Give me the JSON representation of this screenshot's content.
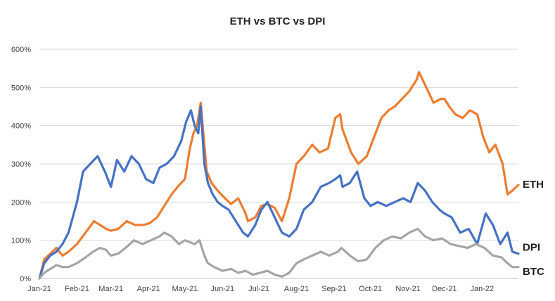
{
  "chart_data": {
    "type": "line",
    "title": "ETH vs BTC vs DPI",
    "xlabel": "",
    "ylabel": "",
    "ylim": [
      0,
      600
    ],
    "y_ticks": [
      "0%",
      "100%",
      "200%",
      "300%",
      "400%",
      "500%",
      "600%"
    ],
    "y_tick_values": [
      0,
      100,
      200,
      300,
      400,
      500,
      600
    ],
    "x_ticks": [
      "Jan-21",
      "Feb-21",
      "Mar-21",
      "Apr-21",
      "May-21",
      "Jun-21",
      "Jul-21",
      "Aug-21",
      "Sep-21",
      "Oct-21",
      "Nov-21",
      "Dec-21",
      "Jan-22"
    ],
    "x_tick_values": [
      "2021-01-01",
      "2021-02-01",
      "2021-03-01",
      "2021-04-01",
      "2021-05-01",
      "2021-06-01",
      "2021-07-01",
      "2021-08-01",
      "2021-09-01",
      "2021-10-01",
      "2021-11-01",
      "2021-12-01",
      "2022-01-01"
    ],
    "x_range": [
      "2021-01-01",
      "2022-01-31"
    ],
    "grid": "horizontal",
    "legend": "labels at line ends (right)",
    "series": [
      {
        "name": "ETH",
        "color": "#ED7D31",
        "x": [
          "2021-01-01",
          "2021-01-05",
          "2021-01-10",
          "2021-01-15",
          "2021-01-20",
          "2021-01-25",
          "2021-02-01",
          "2021-02-08",
          "2021-02-15",
          "2021-02-20",
          "2021-02-25",
          "2021-03-01",
          "2021-03-07",
          "2021-03-14",
          "2021-03-21",
          "2021-03-28",
          "2021-04-02",
          "2021-04-08",
          "2021-04-14",
          "2021-04-20",
          "2021-04-25",
          "2021-05-01",
          "2021-05-05",
          "2021-05-08",
          "2021-05-11",
          "2021-05-14",
          "2021-05-19",
          "2021-05-23",
          "2021-05-28",
          "2021-06-03",
          "2021-06-08",
          "2021-06-14",
          "2021-06-20",
          "2021-06-22",
          "2021-06-28",
          "2021-07-03",
          "2021-07-08",
          "2021-07-14",
          "2021-07-20",
          "2021-07-26",
          "2021-08-01",
          "2021-08-07",
          "2021-08-14",
          "2021-08-20",
          "2021-08-27",
          "2021-09-02",
          "2021-09-06",
          "2021-09-08",
          "2021-09-15",
          "2021-09-21",
          "2021-09-28",
          "2021-10-04",
          "2021-10-10",
          "2021-10-16",
          "2021-10-21",
          "2021-10-27",
          "2021-11-02",
          "2021-11-08",
          "2021-11-10",
          "2021-11-16",
          "2021-11-22",
          "2021-11-28",
          "2021-12-01",
          "2021-12-05",
          "2021-12-10",
          "2021-12-16",
          "2021-12-22",
          "2021-12-28",
          "2022-01-02",
          "2022-01-07",
          "2022-01-12",
          "2022-01-18",
          "2022-01-22",
          "2022-01-26",
          "2022-01-31"
        ],
        "y": [
          0,
          50,
          65,
          80,
          60,
          70,
          90,
          120,
          150,
          140,
          130,
          125,
          130,
          150,
          140,
          140,
          145,
          160,
          190,
          220,
          240,
          260,
          340,
          380,
          400,
          460,
          280,
          250,
          230,
          210,
          195,
          210,
          170,
          150,
          160,
          190,
          195,
          185,
          150,
          210,
          300,
          320,
          350,
          330,
          340,
          420,
          430,
          390,
          330,
          300,
          320,
          370,
          420,
          440,
          450,
          470,
          490,
          520,
          540,
          500,
          460,
          470,
          470,
          450,
          430,
          420,
          440,
          430,
          370,
          330,
          350,
          300,
          220,
          230,
          245
        ]
      },
      {
        "name": "DPI",
        "color": "#4472C4",
        "x": [
          "2021-01-01",
          "2021-01-05",
          "2021-01-10",
          "2021-01-15",
          "2021-01-20",
          "2021-01-25",
          "2021-02-01",
          "2021-02-06",
          "2021-02-12",
          "2021-02-18",
          "2021-02-24",
          "2021-03-01",
          "2021-03-06",
          "2021-03-12",
          "2021-03-18",
          "2021-03-24",
          "2021-03-30",
          "2021-04-05",
          "2021-04-10",
          "2021-04-16",
          "2021-04-22",
          "2021-04-28",
          "2021-05-02",
          "2021-05-06",
          "2021-05-09",
          "2021-05-12",
          "2021-05-14",
          "2021-05-17",
          "2021-05-20",
          "2021-05-24",
          "2021-05-28",
          "2021-06-01",
          "2021-06-06",
          "2021-06-12",
          "2021-06-18",
          "2021-06-22",
          "2021-06-28",
          "2021-07-03",
          "2021-07-08",
          "2021-07-14",
          "2021-07-20",
          "2021-07-26",
          "2021-08-01",
          "2021-08-07",
          "2021-08-14",
          "2021-08-21",
          "2021-08-28",
          "2021-09-02",
          "2021-09-06",
          "2021-09-08",
          "2021-09-14",
          "2021-09-20",
          "2021-09-26",
          "2021-10-01",
          "2021-10-07",
          "2021-10-14",
          "2021-10-21",
          "2021-10-28",
          "2021-11-03",
          "2021-11-09",
          "2021-11-15",
          "2021-11-21",
          "2021-11-27",
          "2021-12-01",
          "2021-12-07",
          "2021-12-14",
          "2021-12-21",
          "2021-12-28",
          "2022-01-04",
          "2022-01-10",
          "2022-01-16",
          "2022-01-22",
          "2022-01-26",
          "2022-01-31"
        ],
        "y": [
          0,
          40,
          60,
          70,
          90,
          120,
          200,
          280,
          300,
          320,
          280,
          240,
          310,
          280,
          320,
          300,
          260,
          250,
          290,
          300,
          320,
          360,
          410,
          440,
          400,
          380,
          450,
          300,
          250,
          220,
          200,
          190,
          180,
          150,
          120,
          110,
          140,
          180,
          200,
          160,
          120,
          110,
          130,
          180,
          200,
          240,
          250,
          260,
          270,
          240,
          250,
          280,
          210,
          190,
          200,
          190,
          200,
          210,
          200,
          250,
          230,
          200,
          180,
          170,
          160,
          120,
          130,
          90,
          170,
          140,
          90,
          120,
          70,
          65
        ]
      },
      {
        "name": "BTC",
        "color": "#A5A5A5",
        "x": [
          "2021-01-01",
          "2021-01-05",
          "2021-01-10",
          "2021-01-15",
          "2021-01-20",
          "2021-01-25",
          "2021-02-01",
          "2021-02-08",
          "2021-02-14",
          "2021-02-20",
          "2021-02-25",
          "2021-03-01",
          "2021-03-07",
          "2021-03-13",
          "2021-03-20",
          "2021-03-27",
          "2021-04-03",
          "2021-04-10",
          "2021-04-14",
          "2021-04-20",
          "2021-04-26",
          "2021-05-01",
          "2021-05-05",
          "2021-05-09",
          "2021-05-13",
          "2021-05-17",
          "2021-05-20",
          "2021-05-25",
          "2021-06-01",
          "2021-06-08",
          "2021-06-14",
          "2021-06-20",
          "2021-06-26",
          "2021-07-02",
          "2021-07-08",
          "2021-07-14",
          "2021-07-20",
          "2021-07-26",
          "2021-08-01",
          "2021-08-07",
          "2021-08-14",
          "2021-08-21",
          "2021-08-28",
          "2021-09-04",
          "2021-09-07",
          "2021-09-14",
          "2021-09-21",
          "2021-09-28",
          "2021-10-05",
          "2021-10-12",
          "2021-10-19",
          "2021-10-26",
          "2021-11-02",
          "2021-11-09",
          "2021-11-15",
          "2021-11-22",
          "2021-11-29",
          "2021-12-06",
          "2021-12-13",
          "2021-12-20",
          "2021-12-27",
          "2022-01-03",
          "2022-01-10",
          "2022-01-17",
          "2022-01-22",
          "2022-01-26",
          "2022-01-31"
        ],
        "y": [
          0,
          15,
          25,
          35,
          30,
          30,
          40,
          55,
          70,
          80,
          75,
          60,
          65,
          80,
          100,
          90,
          100,
          110,
          120,
          110,
          90,
          100,
          95,
          90,
          100,
          60,
          40,
          30,
          20,
          25,
          15,
          20,
          10,
          15,
          20,
          10,
          5,
          15,
          40,
          50,
          60,
          70,
          60,
          70,
          80,
          60,
          45,
          50,
          80,
          100,
          110,
          105,
          120,
          130,
          110,
          100,
          105,
          90,
          85,
          80,
          90,
          80,
          60,
          55,
          40,
          30,
          30
        ]
      }
    ]
  }
}
